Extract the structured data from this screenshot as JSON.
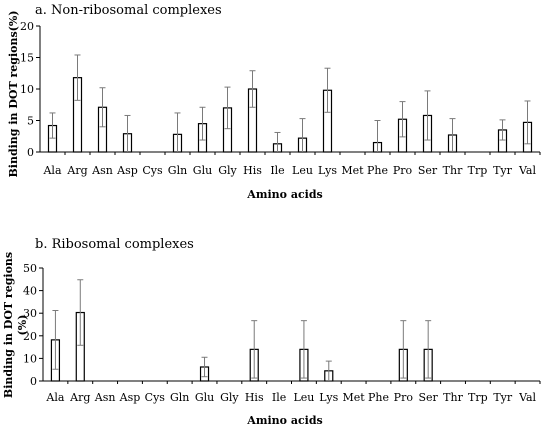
{
  "chart_data": [
    {
      "type": "bar",
      "title": "a. Non-ribosomal complexes",
      "xlabel": "Amino acids",
      "ylabel": "Binding in DOT regions(%)",
      "ylim": [
        0,
        20
      ],
      "yticks": [
        0,
        5,
        10,
        15,
        20
      ],
      "grid": false,
      "error_bars": true,
      "categories": [
        "Ala",
        "Arg",
        "Asn",
        "Asp",
        "Cys",
        "Gln",
        "Glu",
        "Gly",
        "His",
        "Ile",
        "Leu",
        "Lys",
        "Met",
        "Phe",
        "Pro",
        "Ser",
        "Thr",
        "Trp",
        "Tyr",
        "Val"
      ],
      "values": [
        4.2,
        11.8,
        7.1,
        2.9,
        0,
        2.8,
        4.5,
        7.0,
        10.0,
        1.3,
        2.2,
        9.8,
        0,
        1.5,
        5.2,
        5.8,
        2.7,
        0,
        3.5,
        4.7
      ],
      "error": [
        2.0,
        3.6,
        3.1,
        2.9,
        0,
        3.4,
        2.6,
        3.3,
        2.9,
        1.8,
        3.1,
        3.5,
        0,
        3.5,
        2.8,
        3.9,
        2.6,
        0,
        1.6,
        3.4
      ]
    },
    {
      "type": "bar",
      "title": "b. Ribosomal  complexes",
      "xlabel": "Amino acids",
      "ylabel": "Binding in DOT regions\n(%)",
      "ylim": [
        0,
        50
      ],
      "yticks": [
        0,
        10,
        20,
        30,
        40,
        50
      ],
      "grid": false,
      "error_bars": true,
      "categories": [
        "Ala",
        "Arg",
        "Asn",
        "Asp",
        "Cys",
        "Gln",
        "Glu",
        "Gly",
        "His",
        "Ile",
        "Leu",
        "Lys",
        "Met",
        "Phe",
        "Pro",
        "Ser",
        "Thr",
        "Trp",
        "Tyr",
        "Val"
      ],
      "values": [
        18.2,
        30.3,
        0,
        0,
        0,
        0,
        6.2,
        0,
        14.0,
        0,
        14.0,
        4.5,
        0,
        0,
        14.0,
        14.0,
        0,
        0,
        0,
        0
      ],
      "error": [
        13.0,
        14.5,
        0,
        0,
        0,
        0,
        4.3,
        0,
        12.7,
        0,
        12.7,
        4.3,
        0,
        0,
        12.7,
        12.7,
        0,
        0,
        0,
        0
      ]
    }
  ],
  "colors": {
    "bar_fill": "#ffffff",
    "bar_stroke": "#000000",
    "axis": "#000000",
    "error_bar": "#7a7a7a",
    "text": "#000000"
  }
}
